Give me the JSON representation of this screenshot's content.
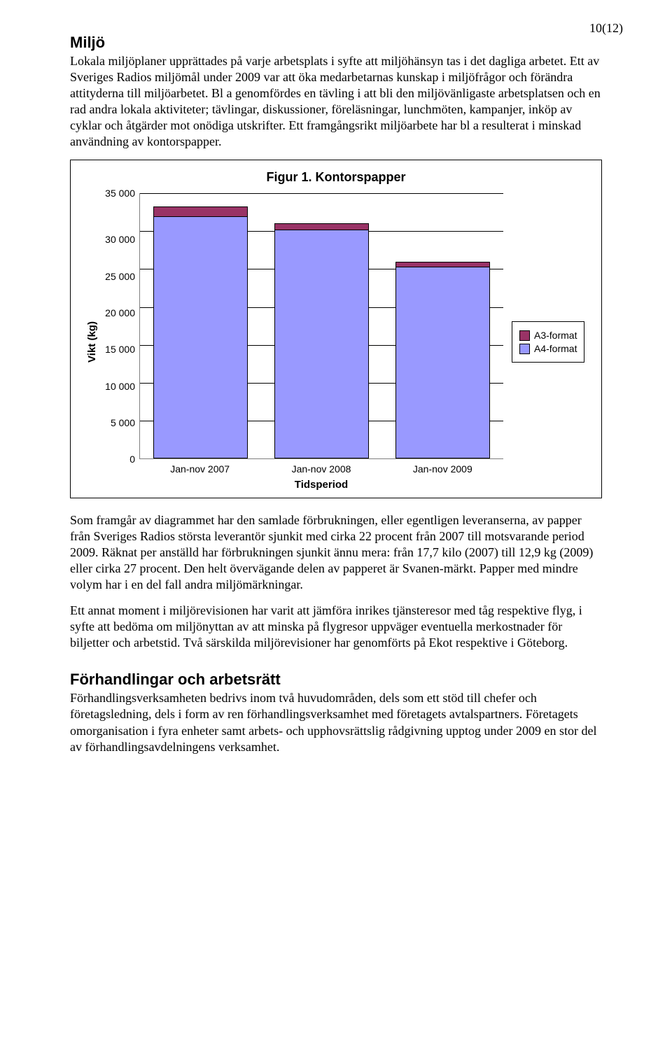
{
  "page_number": "10(12)",
  "section1": {
    "heading": "Miljö",
    "paragraph": "Lokala miljöplaner upprättades på varje arbetsplats i syfte att miljöhänsyn tas i det dagliga arbetet. Ett av Sveriges Radios miljömål under 2009 var att öka medarbetarnas kunskap i miljöfrågor och förändra attityderna till miljöarbetet. Bl a genomfördes en tävling i att bli den miljövänligaste arbetsplatsen och en rad andra lokala aktiviteter; tävlingar, diskussioner, föreläsningar, lunchmöten, kampanjer, inköp av cyklar och åtgärder mot onödiga utskrifter. Ett framgångsrikt miljöarbete har bl a resulterat i minskad användning av kontorspapper."
  },
  "chart": {
    "type": "stacked-bar",
    "title": "Figur 1. Kontorspapper",
    "ylabel": "Vikt (kg)",
    "xlabel": "Tidsperiod",
    "ymax": 35000,
    "ytick_step": 5000,
    "yticks": [
      "35 000",
      "30 000",
      "25 000",
      "20 000",
      "15 000",
      "10 000",
      "5 000",
      "0"
    ],
    "categories": [
      "Jan-nov 2007",
      "Jan-nov 2008",
      "Jan-nov 2009"
    ],
    "series": [
      {
        "name": "A3-format",
        "color": "#993366",
        "values": [
          1200,
          800,
          600
        ]
      },
      {
        "name": "A4-format",
        "color": "#9999ff",
        "values": [
          31800,
          30000,
          25100
        ]
      }
    ],
    "bar_width_pct": 26,
    "grid_color": "#000000",
    "axis_color": "#808080",
    "background_color": "#ffffff",
    "title_fontsize": 18,
    "label_fontsize": 15,
    "tick_fontsize": 14,
    "legend": [
      "A3-format",
      "A4-format"
    ]
  },
  "para2": "Som framgår av diagrammet har den samlade förbrukningen, eller egentligen leveranserna, av papper från Sveriges Radios största leverantör sjunkit med cirka 22 procent från 2007 till motsvarande period 2009. Räknat per anställd har förbrukningen sjunkit ännu mera: från 17,7 kilo (2007) till 12,9 kg (2009) eller cirka 27 procent. Den helt övervägande delen av papperet är Svanen-märkt. Papper med mindre volym har i en del fall andra miljömärkningar.",
  "para3": "Ett annat moment i miljörevisionen har varit att jämföra inrikes tjänsteresor med tåg respektive flyg, i syfte att bedöma om miljönyttan av att minska på flygresor uppväger eventuella merkostnader för biljetter och arbetstid. Två särskilda miljörevisioner har genomförts på Ekot respektive i Göteborg.",
  "section2": {
    "heading": "Förhandlingar och arbetsrätt",
    "paragraph": "Förhandlingsverksamheten bedrivs inom två huvudområden, dels som ett stöd till chefer och företagsledning, dels i form av ren förhandlingsverksamhet med företagets avtalspartners. Företagets omorganisation i fyra enheter samt arbets- och upphovsrättslig rådgivning upptog under 2009 en stor del av förhandlingsavdelningens verksamhet."
  }
}
